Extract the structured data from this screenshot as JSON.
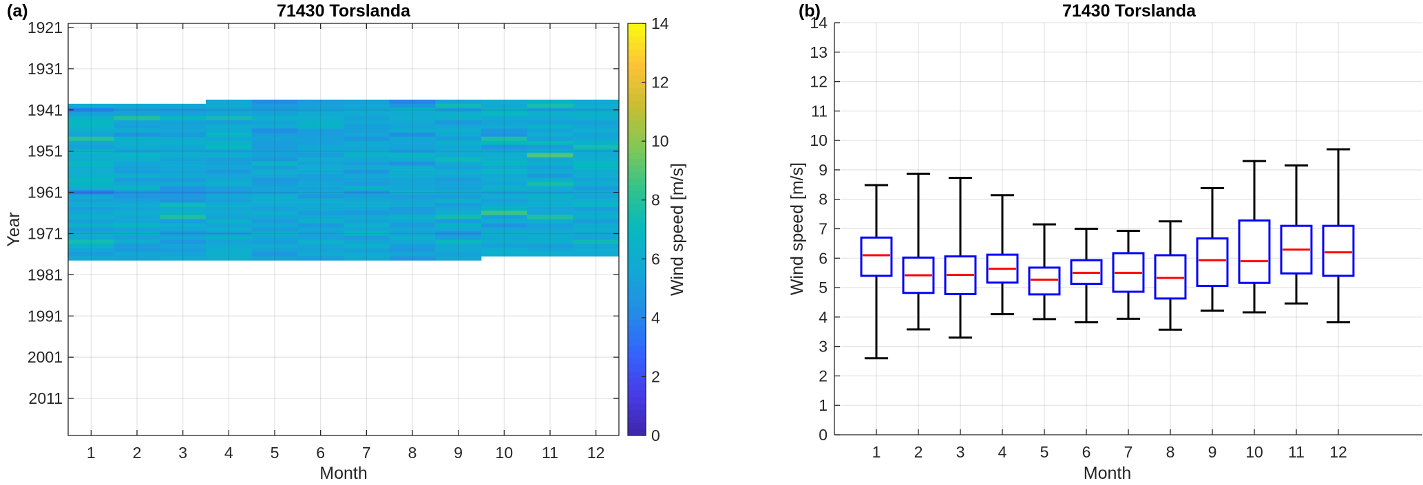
{
  "chart_data": [
    {
      "type": "heatmap",
      "panel_label": "(a)",
      "title": "71430 Torslanda",
      "xlabel": "Month",
      "ylabel": "Year",
      "colorbar_label": "Wind speed [m/s]",
      "clim": [
        0,
        14
      ],
      "colorbar_ticks": [
        "0",
        "2",
        "4",
        "6",
        "8",
        "10",
        "12",
        "14"
      ],
      "xlim": [
        0.5,
        12.5
      ],
      "ylim": [
        1920,
        2020
      ],
      "x_ticks": [
        "1",
        "2",
        "3",
        "4",
        "5",
        "6",
        "7",
        "8",
        "9",
        "10",
        "11",
        "12"
      ],
      "y_ticks": [
        "1921",
        "1931",
        "1941",
        "1951",
        "1961",
        "1971",
        "1981",
        "1991",
        "2001",
        "2011"
      ],
      "grid": true,
      "years": [
        1939,
        1940,
        1941,
        1942,
        1943,
        1944,
        1945,
        1946,
        1947,
        1948,
        1949,
        1950,
        1951,
        1952,
        1953,
        1954,
        1955,
        1956,
        1957,
        1958,
        1959,
        1960,
        1961,
        1962,
        1963,
        1964,
        1965,
        1966,
        1967,
        1968,
        1969,
        1970,
        1971,
        1972,
        1973,
        1974,
        1975,
        1976,
        1977
      ],
      "values": [
        [
          null,
          null,
          null,
          5.6,
          4.2,
          5.0,
          5.3,
          3.9,
          5.4,
          6.1,
          6.6,
          5.8
        ],
        [
          6.0,
          5.7,
          5.6,
          5.9,
          4.9,
          5.2,
          5.5,
          4.7,
          7.3,
          5.6,
          7.6,
          6.0
        ],
        [
          3.9,
          5.1,
          5.0,
          5.3,
          5.0,
          5.4,
          5.6,
          6.4,
          5.1,
          6.3,
          5.3,
          5.5
        ],
        [
          5.2,
          5.3,
          5.2,
          5.5,
          5.3,
          5.8,
          5.8,
          5.8,
          6.0,
          6.9,
          6.2,
          6.4
        ],
        [
          6.5,
          7.9,
          7.0,
          7.4,
          6.4,
          6.2,
          5.3,
          6.0,
          6.6,
          5.6,
          5.8,
          6.1
        ],
        [
          6.8,
          5.4,
          5.3,
          5.1,
          5.4,
          6.3,
          5.7,
          5.7,
          4.7,
          5.4,
          5.2,
          5.3
        ],
        [
          6.7,
          5.2,
          5.4,
          6.1,
          5.9,
          6.6,
          5.2,
          5.4,
          5.5,
          5.8,
          6.6,
          5.5
        ],
        [
          6.1,
          6.1,
          5.5,
          5.8,
          4.3,
          5.1,
          5.3,
          6.0,
          6.1,
          4.8,
          5.4,
          6.0
        ],
        [
          5.4,
          4.5,
          4.9,
          6.8,
          5.0,
          5.0,
          5.5,
          4.3,
          5.8,
          4.6,
          6.0,
          5.4
        ],
        [
          8.2,
          6.6,
          5.8,
          5.7,
          5.4,
          5.3,
          4.7,
          5.7,
          5.1,
          7.8,
          5.2,
          5.6
        ],
        [
          5.7,
          6.1,
          6.4,
          6.5,
          5.1,
          5.2,
          5.8,
          5.5,
          6.4,
          6.9,
          7.1,
          6.6
        ],
        [
          5.2,
          6.0,
          5.6,
          7.0,
          5.0,
          5.6,
          5.6,
          5.4,
          5.6,
          4.6,
          5.0,
          7.5
        ],
        [
          6.8,
          5.4,
          5.5,
          5.4,
          5.2,
          5.6,
          5.9,
          5.0,
          5.8,
          5.7,
          6.1,
          5.8
        ],
        [
          6.2,
          6.8,
          6.4,
          6.2,
          5.4,
          5.0,
          6.4,
          6.8,
          5.8,
          6.0,
          9.0,
          5.8
        ],
        [
          6.0,
          6.1,
          5.3,
          5.1,
          4.7,
          6.1,
          5.7,
          5.9,
          7.2,
          6.2,
          5.5,
          6.1
        ],
        [
          7.0,
          5.5,
          5.6,
          5.3,
          6.8,
          5.4,
          5.1,
          4.5,
          5.9,
          6.8,
          6.4,
          7.0
        ],
        [
          6.0,
          5.3,
          5.6,
          5.5,
          5.2,
          6.0,
          5.8,
          6.0,
          5.2,
          5.6,
          5.1,
          6.8
        ],
        [
          6.1,
          5.1,
          5.4,
          4.9,
          6.0,
          5.6,
          4.8,
          6.2,
          6.3,
          6.7,
          5.9,
          5.8
        ],
        [
          6.3,
          6.2,
          5.9,
          5.5,
          5.5,
          5.3,
          5.6,
          5.9,
          5.5,
          5.6,
          4.9,
          6.0
        ],
        [
          6.9,
          5.0,
          4.9,
          5.7,
          4.7,
          5.2,
          5.3,
          5.4,
          4.9,
          5.9,
          6.4,
          5.4
        ],
        [
          6.6,
          5.7,
          5.8,
          6.2,
          5.1,
          5.7,
          5.0,
          5.5,
          5.4,
          5.5,
          7.5,
          6.2
        ],
        [
          6.1,
          6.7,
          4.6,
          5.1,
          5.4,
          5.3,
          6.6,
          5.5,
          5.3,
          6.5,
          5.9,
          4.9
        ],
        [
          3.5,
          4.5,
          4.3,
          4.7,
          5.1,
          5.5,
          4.6,
          6.1,
          5.9,
          5.2,
          5.3,
          5.7
        ],
        [
          5.8,
          4.7,
          4.9,
          5.6,
          6.1,
          4.8,
          5.3,
          5.0,
          5.1,
          6.0,
          6.6,
          5.4
        ],
        [
          5.3,
          5.2,
          4.6,
          5.2,
          6.0,
          6.2,
          5.7,
          5.5,
          6.4,
          5.2,
          5.8,
          6.0
        ],
        [
          6.0,
          6.0,
          7.2,
          6.1,
          5.8,
          5.6,
          6.1,
          5.9,
          5.1,
          5.8,
          6.2,
          6.9
        ],
        [
          5.1,
          5.4,
          5.8,
          5.7,
          5.2,
          5.8,
          5.5,
          4.9,
          5.5,
          6.6,
          5.4,
          5.2
        ],
        [
          5.6,
          6.1,
          6.6,
          5.8,
          6.2,
          5.1,
          4.9,
          5.3,
          6.0,
          8.6,
          5.7,
          5.8
        ],
        [
          6.3,
          5.7,
          7.8,
          5.4,
          5.5,
          5.7,
          5.8,
          6.3,
          7.4,
          5.2,
          7.9,
          6.3
        ],
        [
          5.2,
          5.5,
          5.1,
          6.4,
          5.0,
          6.3,
          5.4,
          5.6,
          5.0,
          6.1,
          6.1,
          5.0
        ],
        [
          6.4,
          6.8,
          6.1,
          5.5,
          5.8,
          4.9,
          6.1,
          5.0,
          6.6,
          4.6,
          5.2,
          5.9
        ],
        [
          5.0,
          5.2,
          5.5,
          6.1,
          4.9,
          5.6,
          5.6,
          5.6,
          5.7,
          5.5,
          5.5,
          6.2
        ],
        [
          6.0,
          6.3,
          4.9,
          5.1,
          6.3,
          5.4,
          6.8,
          5.4,
          4.6,
          6.3,
          6.0,
          5.6
        ],
        [
          5.6,
          5.3,
          5.6,
          6.5,
          5.4,
          5.2,
          5.0,
          6.1,
          5.3,
          5.6,
          5.9,
          5.4
        ],
        [
          7.4,
          6.0,
          4.7,
          5.4,
          5.1,
          6.3,
          5.4,
          5.8,
          7.1,
          6.0,
          6.3,
          7.3
        ],
        [
          6.5,
          5.0,
          5.5,
          5.9,
          6.0,
          5.5,
          6.5,
          5.1,
          5.6,
          5.3,
          5.0,
          5.5
        ],
        [
          5.5,
          4.9,
          5.1,
          6.0,
          5.3,
          5.4,
          5.3,
          4.8,
          5.8,
          6.0,
          5.6,
          6.0
        ],
        [
          5.0,
          5.7,
          5.4,
          6.3,
          4.7,
          5.9,
          5.8,
          5.6,
          5.3,
          6.2,
          6.1,
          5.8
        ],
        [
          5.7,
          5.4,
          5.8,
          6.1,
          5.4,
          5.1,
          5.7,
          4.7,
          5.5,
          null,
          null,
          null
        ]
      ]
    },
    {
      "type": "box",
      "panel_label": "(b)",
      "title": "71430 Torslanda",
      "xlabel": "Month",
      "ylabel": "Wind speed [m/s]",
      "xlim": [
        0,
        14
      ],
      "ylim": [
        0,
        14
      ],
      "x_ticks": [
        "1",
        "2",
        "3",
        "4",
        "5",
        "6",
        "7",
        "8",
        "9",
        "10",
        "11",
        "12"
      ],
      "y_ticks": [
        "0",
        "1",
        "2",
        "3",
        "4",
        "5",
        "6",
        "7",
        "8",
        "9",
        "10",
        "11",
        "12",
        "13",
        "14"
      ],
      "grid": true,
      "box_color": "#0000ff",
      "median_color": "#ff0000",
      "whisker_color": "#000000",
      "boxes": [
        {
          "month": 1,
          "min": 2.6,
          "q1": 5.4,
          "median": 6.1,
          "q3": 6.7,
          "max": 8.48
        },
        {
          "month": 2,
          "min": 3.58,
          "q1": 4.82,
          "median": 5.42,
          "q3": 6.02,
          "max": 8.87
        },
        {
          "month": 3,
          "min": 3.3,
          "q1": 4.78,
          "median": 5.43,
          "q3": 6.06,
          "max": 8.73
        },
        {
          "month": 4,
          "min": 4.1,
          "q1": 5.17,
          "median": 5.64,
          "q3": 6.12,
          "max": 8.14
        },
        {
          "month": 5,
          "min": 3.93,
          "q1": 4.77,
          "median": 5.27,
          "q3": 5.68,
          "max": 7.15
        },
        {
          "month": 6,
          "min": 3.82,
          "q1": 5.13,
          "median": 5.5,
          "q3": 5.93,
          "max": 7.0
        },
        {
          "month": 7,
          "min": 3.94,
          "q1": 4.86,
          "median": 5.5,
          "q3": 6.17,
          "max": 6.93
        },
        {
          "month": 8,
          "min": 3.57,
          "q1": 4.63,
          "median": 5.33,
          "q3": 6.1,
          "max": 7.25
        },
        {
          "month": 9,
          "min": 4.22,
          "q1": 5.06,
          "median": 5.93,
          "q3": 6.67,
          "max": 8.38
        },
        {
          "month": 10,
          "min": 4.16,
          "q1": 5.16,
          "median": 5.9,
          "q3": 7.28,
          "max": 9.3
        },
        {
          "month": 11,
          "min": 4.46,
          "q1": 5.48,
          "median": 6.29,
          "q3": 7.1,
          "max": 9.15
        },
        {
          "month": 12,
          "min": 3.82,
          "q1": 5.4,
          "median": 6.2,
          "q3": 7.1,
          "max": 9.7
        }
      ]
    }
  ]
}
